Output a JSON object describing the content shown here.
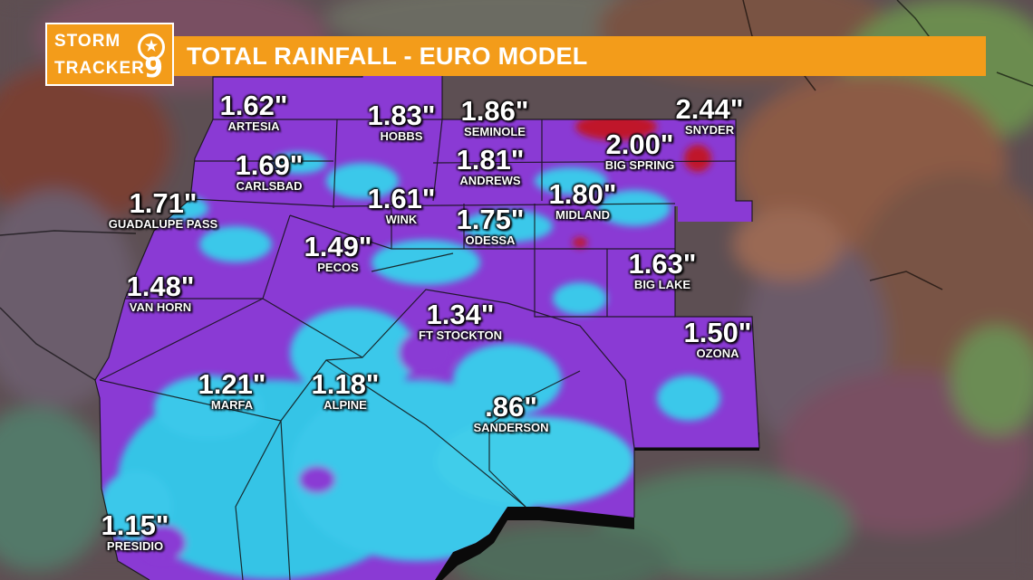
{
  "header": {
    "logo_line1": "STORM",
    "logo_line2": "TRACKER",
    "logo_number": "9",
    "title": "TOTAL RAINFALL - EURO MODEL"
  },
  "colors": {
    "accent_orange": "#f39c1a",
    "rain_purple": "#8c3ad6",
    "rain_cyan": "#3fd0ea",
    "rain_red": "#c0152a",
    "background_terrain": "#6b5a5e"
  },
  "locations": [
    {
      "value": "1.62\"",
      "name": "ARTESIA"
    },
    {
      "value": "1.83\"",
      "name": "HOBBS"
    },
    {
      "value": "1.86\"",
      "name": "SEMINOLE"
    },
    {
      "value": "2.44\"",
      "name": "SNYDER"
    },
    {
      "value": "1.69\"",
      "name": "CARLSBAD"
    },
    {
      "value": "1.81\"",
      "name": "ANDREWS"
    },
    {
      "value": "2.00\"",
      "name": "BIG SPRING"
    },
    {
      "value": "1.71\"",
      "name": "GUADALUPE PASS"
    },
    {
      "value": "1.61\"",
      "name": "WINK"
    },
    {
      "value": "1.75\"",
      "name": "ODESSA"
    },
    {
      "value": "1.80\"",
      "name": "MIDLAND"
    },
    {
      "value": "1.49\"",
      "name": "PECOS"
    },
    {
      "value": "1.63\"",
      "name": "BIG LAKE"
    },
    {
      "value": "1.48\"",
      "name": "VAN HORN"
    },
    {
      "value": "1.34\"",
      "name": "FT STOCKTON"
    },
    {
      "value": "1.50\"",
      "name": "OZONA"
    },
    {
      "value": "1.21\"",
      "name": "MARFA"
    },
    {
      "value": "1.18\"",
      "name": "ALPINE"
    },
    {
      "value": ".86\"",
      "name": "SANDERSON"
    },
    {
      "value": "1.15\"",
      "name": "PRESIDIO"
    }
  ]
}
